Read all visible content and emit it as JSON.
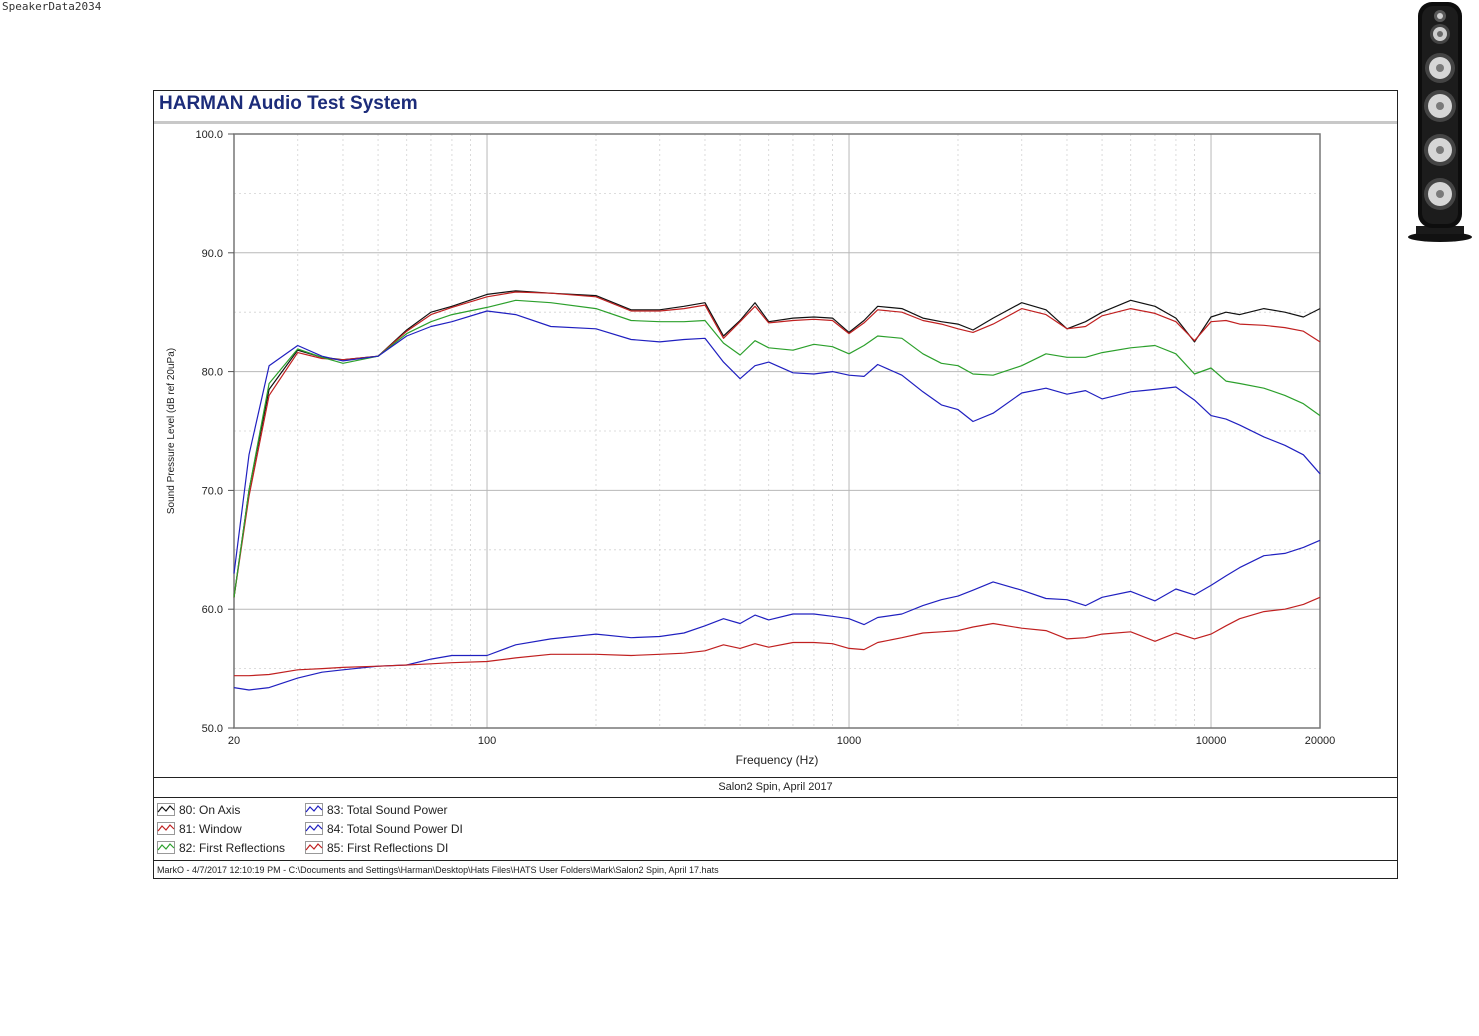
{
  "watermark": "SpeakerData2034",
  "header": {
    "title": "HARMAN Audio Test System"
  },
  "caption": "Salon2 Spin, April 2017",
  "footer": "MarkO - 4/7/2017 12:10:19 PM - C:\\Documents and Settings\\Harman\\Desktop\\Hats Files\\HATS User Folders\\Mark\\Salon2 Spin, April 17.hats",
  "chart_data": {
    "type": "line",
    "xlabel": "Frequency (Hz)",
    "ylabel": "Sound Pressure Level (dB ref 20uPa)",
    "x_scale": "log",
    "xlim": [
      20,
      20000
    ],
    "ylim": [
      50,
      100
    ],
    "grid": true,
    "legend_position": "bottom-left",
    "x_ticks": [
      {
        "value": 20,
        "label": "20"
      },
      {
        "value": 100,
        "label": "100"
      },
      {
        "value": 1000,
        "label": "1000"
      },
      {
        "value": 10000,
        "label": "10000"
      },
      {
        "value": 20000,
        "label": "20000"
      }
    ],
    "y_ticks": [
      {
        "value": 50,
        "label": "50.0"
      },
      {
        "value": 60,
        "label": "60.0"
      },
      {
        "value": 70,
        "label": "70.0"
      },
      {
        "value": 80,
        "label": "80.0"
      },
      {
        "value": 90,
        "label": "90.0"
      },
      {
        "value": 100,
        "label": "100.0"
      }
    ],
    "x": [
      20,
      22,
      25,
      30,
      35,
      40,
      50,
      60,
      70,
      80,
      100,
      120,
      150,
      200,
      250,
      300,
      350,
      400,
      450,
      500,
      550,
      600,
      700,
      800,
      900,
      1000,
      1100,
      1200,
      1400,
      1600,
      1800,
      2000,
      2200,
      2500,
      3000,
      3500,
      4000,
      4500,
      5000,
      6000,
      7000,
      8000,
      9000,
      10000,
      11000,
      12000,
      14000,
      16000,
      18000,
      20000
    ],
    "series": [
      {
        "name": "80: On Axis",
        "color": "#111111",
        "values": [
          61,
          70,
          78.5,
          81.8,
          81.2,
          81,
          81.3,
          83.5,
          85,
          85.5,
          86.5,
          86.8,
          86.6,
          86.4,
          85.2,
          85.2,
          85.5,
          85.8,
          83,
          84.3,
          85.8,
          84.2,
          84.5,
          84.6,
          84.5,
          83.3,
          84.3,
          85.5,
          85.3,
          84.5,
          84.2,
          84,
          83.5,
          84.5,
          85.8,
          85.2,
          83.6,
          84.2,
          85,
          86,
          85.5,
          84.5,
          82.5,
          84.6,
          85,
          84.8,
          85.3,
          85,
          84.6,
          85.3
        ]
      },
      {
        "name": "81: Window",
        "color": "#c02020",
        "values": [
          61,
          69.5,
          78,
          81.6,
          81.1,
          81,
          81.3,
          83.4,
          84.8,
          85.4,
          86.3,
          86.7,
          86.6,
          86.3,
          85.1,
          85.1,
          85.3,
          85.6,
          82.8,
          84.2,
          85.5,
          84.1,
          84.3,
          84.4,
          84.3,
          83.2,
          84.1,
          85.2,
          85,
          84.3,
          84,
          83.6,
          83.3,
          84,
          85.3,
          84.8,
          83.6,
          83.8,
          84.7,
          85.3,
          84.9,
          84.2,
          82.6,
          84.2,
          84.3,
          84,
          83.9,
          83.7,
          83.4,
          82.5
        ]
      },
      {
        "name": "82: First Reflections",
        "color": "#2ca02c",
        "values": [
          61,
          70,
          79,
          81.9,
          81.2,
          80.7,
          81.3,
          83.2,
          84.2,
          84.8,
          85.4,
          86,
          85.8,
          85.3,
          84.3,
          84.2,
          84.2,
          84.3,
          82.4,
          81.4,
          82.6,
          82,
          81.8,
          82.3,
          82.1,
          81.5,
          82.2,
          83,
          82.8,
          81.5,
          80.7,
          80.5,
          79.8,
          79.7,
          80.5,
          81.5,
          81.2,
          81.2,
          81.6,
          82,
          82.2,
          81.5,
          79.8,
          80.3,
          79.2,
          79,
          78.6,
          78,
          77.3,
          76.3
        ]
      },
      {
        "name": "83: Total Sound Power",
        "color": "#2020c0",
        "values": [
          63,
          73,
          80.5,
          82.2,
          81.3,
          80.9,
          81.3,
          83,
          83.8,
          84.2,
          85.1,
          84.8,
          83.8,
          83.6,
          82.7,
          82.5,
          82.7,
          82.8,
          80.8,
          79.4,
          80.5,
          80.8,
          79.9,
          79.8,
          80,
          79.7,
          79.6,
          80.6,
          79.7,
          78.3,
          77.2,
          76.8,
          75.8,
          76.5,
          78.2,
          78.6,
          78.1,
          78.4,
          77.7,
          78.3,
          78.5,
          78.7,
          77.6,
          76.3,
          76,
          75.5,
          74.5,
          73.8,
          73,
          71.4
        ]
      },
      {
        "name": "84: Total Sound Power DI",
        "color": "#2020c0",
        "values": [
          53.4,
          53.2,
          53.4,
          54.2,
          54.7,
          54.9,
          55.2,
          55.3,
          55.8,
          56.1,
          56.1,
          57,
          57.5,
          57.9,
          57.6,
          57.7,
          58,
          58.6,
          59.2,
          58.8,
          59.5,
          59.1,
          59.6,
          59.6,
          59.4,
          59.2,
          58.7,
          59.3,
          59.6,
          60.3,
          60.8,
          61.1,
          61.6,
          62.3,
          61.6,
          60.9,
          60.8,
          60.3,
          61,
          61.5,
          60.7,
          61.7,
          61.2,
          62,
          62.8,
          63.5,
          64.5,
          64.7,
          65.2,
          65.8
        ]
      },
      {
        "name": "85: First Reflections DI",
        "color": "#c02020",
        "values": [
          54.4,
          54.4,
          54.5,
          54.9,
          55,
          55.1,
          55.2,
          55.3,
          55.4,
          55.5,
          55.6,
          55.9,
          56.2,
          56.2,
          56.1,
          56.2,
          56.3,
          56.5,
          57,
          56.7,
          57.1,
          56.8,
          57.2,
          57.2,
          57.1,
          56.7,
          56.6,
          57.2,
          57.6,
          58,
          58.1,
          58.2,
          58.5,
          58.8,
          58.4,
          58.2,
          57.5,
          57.6,
          57.9,
          58.1,
          57.3,
          58,
          57.5,
          57.9,
          58.6,
          59.2,
          59.8,
          60,
          60.4,
          61
        ]
      }
    ]
  }
}
